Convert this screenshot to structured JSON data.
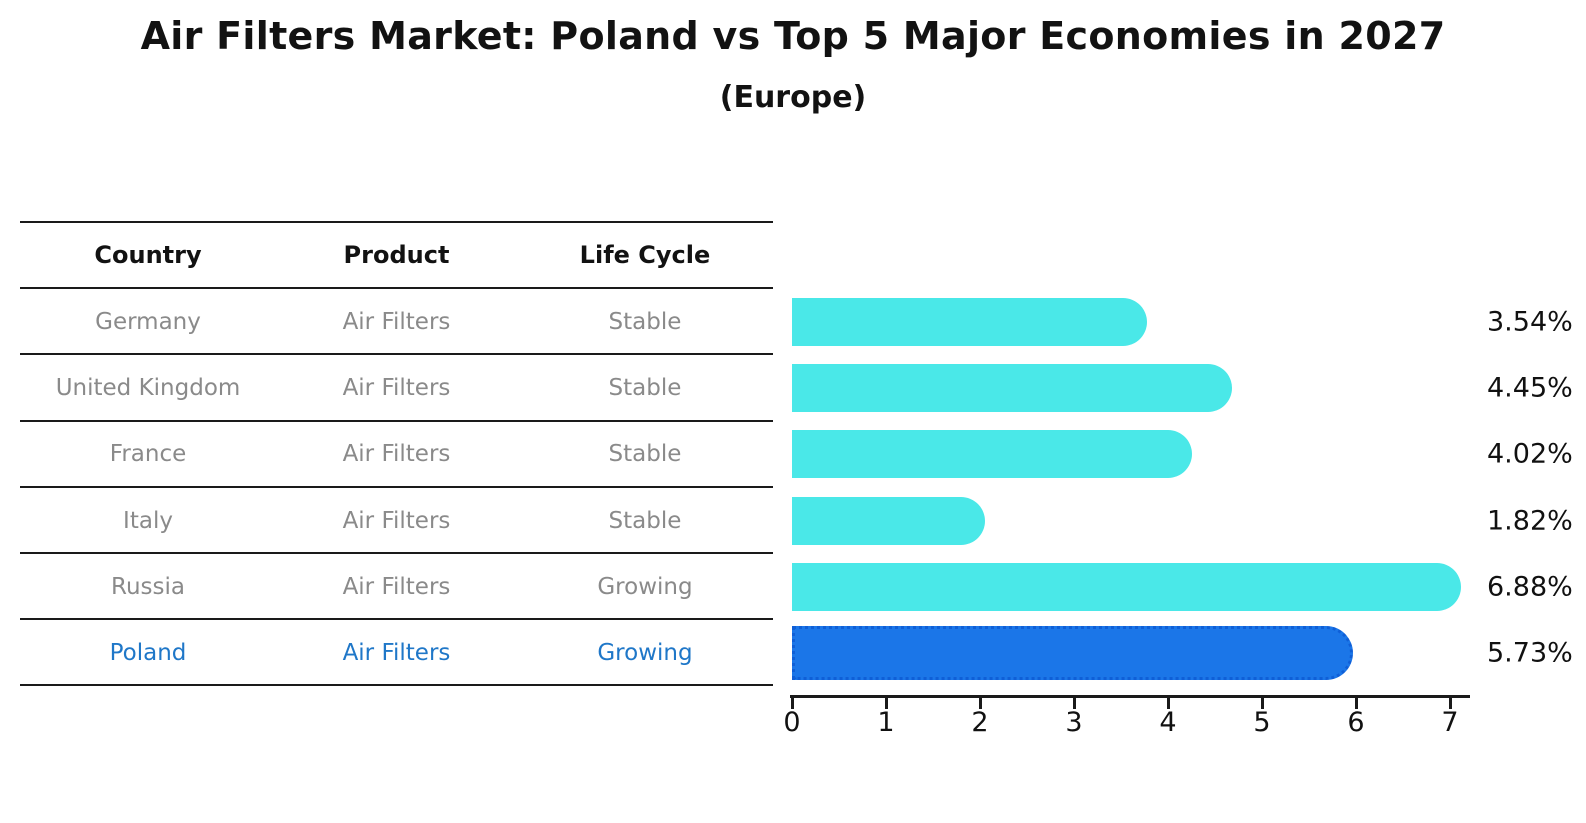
{
  "title": "Air Filters Market: Poland vs Top 5 Major Economies in 2027",
  "subtitle": "(Europe)",
  "table": {
    "headers": [
      "Country",
      "Product",
      "Life Cycle"
    ],
    "rows": [
      {
        "country": "Germany",
        "product": "Air Filters",
        "life_cycle": "Stable",
        "highlight": false
      },
      {
        "country": "United Kingdom",
        "product": "Air Filters",
        "life_cycle": "Stable",
        "highlight": false
      },
      {
        "country": "France",
        "product": "Air Filters",
        "life_cycle": "Stable",
        "highlight": false
      },
      {
        "country": "Italy",
        "product": "Air Filters",
        "life_cycle": "Stable",
        "highlight": false
      },
      {
        "country": "Russia",
        "product": "Air Filters",
        "life_cycle": "Growing",
        "highlight": false
      },
      {
        "country": "Poland",
        "product": "Air Filters",
        "life_cycle": "Growing",
        "highlight": true
      }
    ]
  },
  "chart_data": {
    "type": "bar",
    "orientation": "horizontal",
    "title": "Air Filters Market: Poland vs Top 5 Major Economies in 2027",
    "subtitle": "(Europe)",
    "categories": [
      "Germany",
      "United Kingdom",
      "France",
      "Italy",
      "Russia",
      "Poland"
    ],
    "values": [
      3.54,
      4.45,
      4.02,
      1.82,
      6.88,
      5.73
    ],
    "value_labels": [
      "3.54%",
      "4.45%",
      "4.02%",
      "1.82%",
      "6.88%",
      "5.73%"
    ],
    "xlim": [
      0,
      7
    ],
    "x_ticks": [
      0,
      1,
      2,
      3,
      4,
      5,
      6,
      7
    ],
    "grid": false,
    "legend": false,
    "bar_color": "#4ae8e8",
    "highlight_color": "#1b76e8",
    "highlight_border_color": "#0f5fd7",
    "highlight_index": 5,
    "highlight_text_color": "#1f77c8",
    "row_text_color": "#8a8a8a"
  }
}
